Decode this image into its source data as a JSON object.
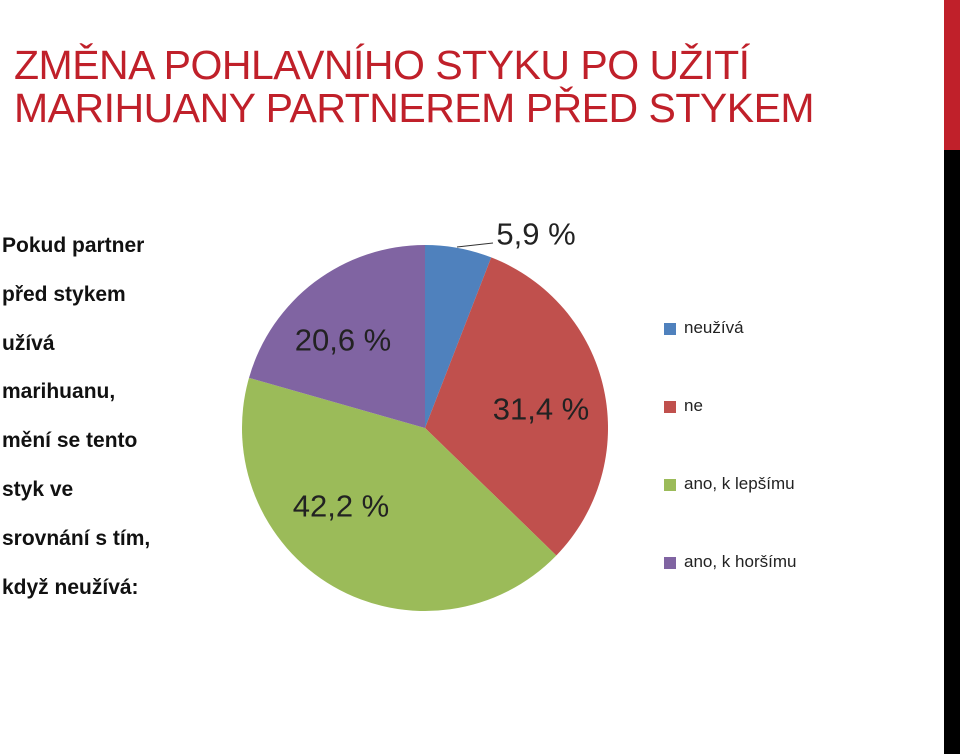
{
  "title": {
    "line1": "ZMĚNA POHLAVNÍHO STYKU PO UŽITÍ",
    "line2": "MARIHUANY PARTNEREM PŘED STYKEM"
  },
  "question": {
    "lines": [
      "Pokud partner",
      "před stykem",
      "užívá",
      "marihuanu,",
      "mění se tento",
      "styk ve",
      "srovnání s tím,",
      "když neužívá:"
    ]
  },
  "chart_data": {
    "type": "pie",
    "categories": [
      "neužívá",
      "ne",
      "ano, k lepšímu",
      "ano, k horšímu"
    ],
    "values": [
      5.9,
      31.4,
      42.2,
      20.6
    ],
    "data_labels": [
      "5,9 %",
      "31,4 %",
      "42,2 %",
      "20,6 %"
    ],
    "colors": [
      "#4f81bd",
      "#c0504d",
      "#9bbb59",
      "#8064a2"
    ],
    "legend_position": "right"
  },
  "colors": {
    "title": "#c0202a",
    "accent_bar_top": "#c0202a",
    "accent_bar_bottom": "#000000"
  }
}
